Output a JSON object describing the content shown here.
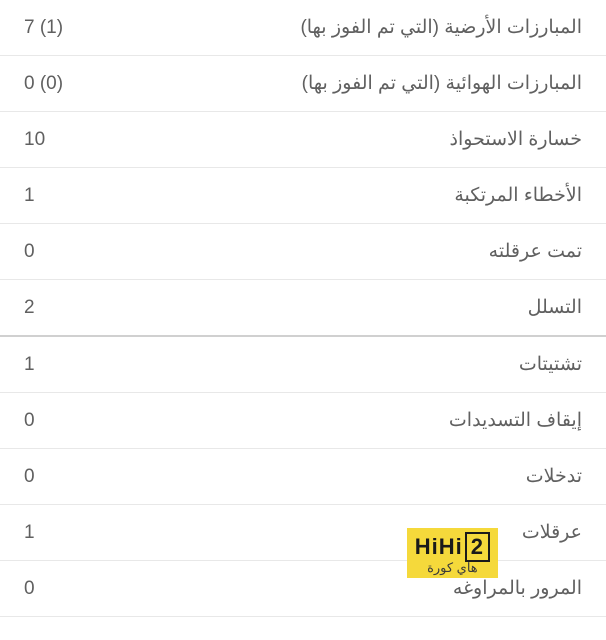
{
  "groups": [
    {
      "rows": [
        {
          "label": "المبارزات الأرضية (التي تم الفوز بها)",
          "value": "7 (1)"
        },
        {
          "label": "المبارزات الهوائية (التي تم الفوز بها)",
          "value": "0 (0)"
        },
        {
          "label": "خسارة الاستحواذ",
          "value": "10"
        },
        {
          "label": "الأخطاء المرتكبة",
          "value": "1"
        },
        {
          "label": "تمت عرقلته",
          "value": "0"
        },
        {
          "label": "التسلل",
          "value": "2"
        }
      ]
    },
    {
      "rows": [
        {
          "label": "تشتيتات",
          "value": "1"
        },
        {
          "label": "إيقاف التسديدات",
          "value": "0"
        },
        {
          "label": "تدخلات",
          "value": "0"
        },
        {
          "label": "عرقلات",
          "value": "1"
        },
        {
          "label": "المرور بالمراوغه",
          "value": "0"
        }
      ]
    }
  ],
  "watermark": {
    "brand_prefix": "HiHi",
    "brand_boxed": "2",
    "subtitle": "هاي كورة"
  },
  "styling": {
    "text_color": "#606060",
    "border_color": "#e8e8e8",
    "section_border_color": "#d0d0d0",
    "font_size": 19,
    "row_padding_v": 16,
    "row_padding_h": 24,
    "background_color": "#ffffff",
    "watermark_bg": "#f5d93b",
    "watermark_text": "#1a1a1a"
  }
}
